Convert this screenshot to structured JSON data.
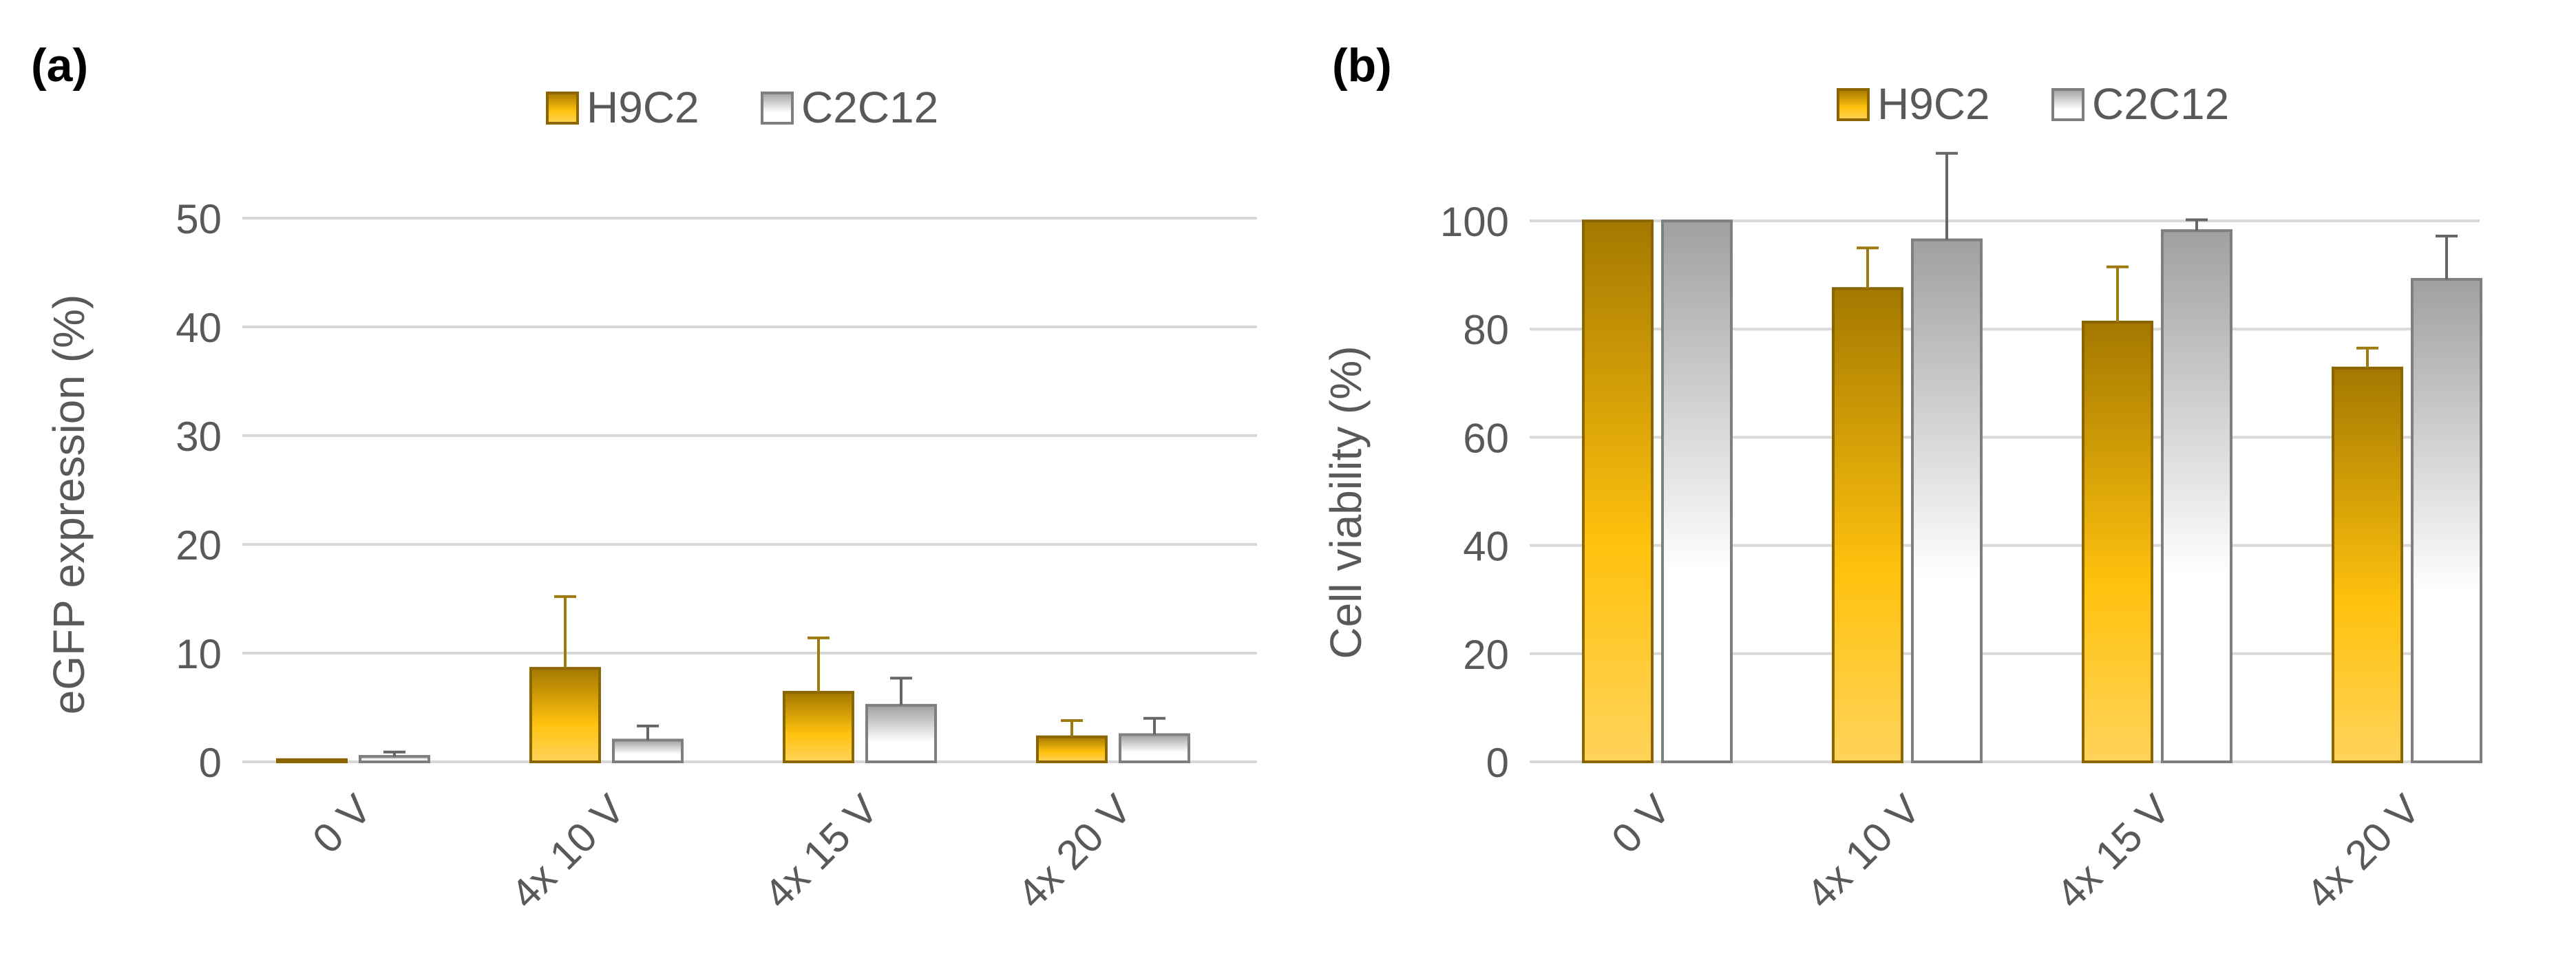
{
  "colors": {
    "h9c2_top": "#a37800",
    "h9c2_mid": "#ffc20e",
    "h9c2_bottom": "#ffd35a",
    "h9c2_stroke": "#8a6500",
    "h9c2_error": "#9c7a10",
    "c2c12_top": "#a0a0a0",
    "c2c12_mid": "#ffffff",
    "c2c12_stroke": "#7f7f7f",
    "c2c12_error": "#666666",
    "grid": "#d9d9d9",
    "tick_text": "#595959",
    "panel_label": "#000000"
  },
  "chart_data": [
    {
      "panel_label": "(a)",
      "type": "bar",
      "ylabel": "eGFP expression (%)",
      "xlabel": "",
      "ylim": [
        0,
        50
      ],
      "yticks": [
        0,
        10,
        20,
        30,
        40,
        50
      ],
      "grid": true,
      "legend": "top-center",
      "categories": [
        "0 V",
        "4x 10 V",
        "4x 15 V",
        "4x 20 V"
      ],
      "series": [
        {
          "name": "H9C2",
          "values": [
            0.2,
            8.6,
            6.4,
            2.3
          ],
          "errors": [
            0.0,
            6.6,
            5.0,
            1.5
          ]
        },
        {
          "name": "C2C12",
          "values": [
            0.5,
            2.0,
            5.2,
            2.5
          ],
          "errors": [
            0.4,
            1.3,
            2.5,
            1.5
          ]
        }
      ]
    },
    {
      "panel_label": "(b)",
      "type": "bar",
      "ylabel": "Cell viability (%)",
      "xlabel": "",
      "ylim": [
        0,
        100
      ],
      "yticks": [
        0,
        20,
        40,
        60,
        80,
        100
      ],
      "grid": true,
      "legend": "top-center",
      "categories": [
        "0 V",
        "4x 10 V",
        "4x 15 V",
        "4x 20 V"
      ],
      "series": [
        {
          "name": "H9C2",
          "values": [
            100,
            87.5,
            81.3,
            72.8
          ],
          "errors": [
            0,
            7.5,
            10.2,
            3.7
          ]
        },
        {
          "name": "C2C12",
          "values": [
            100,
            96.5,
            98.2,
            89.2
          ],
          "errors": [
            0,
            16.0,
            2.0,
            8.0
          ]
        }
      ]
    }
  ]
}
